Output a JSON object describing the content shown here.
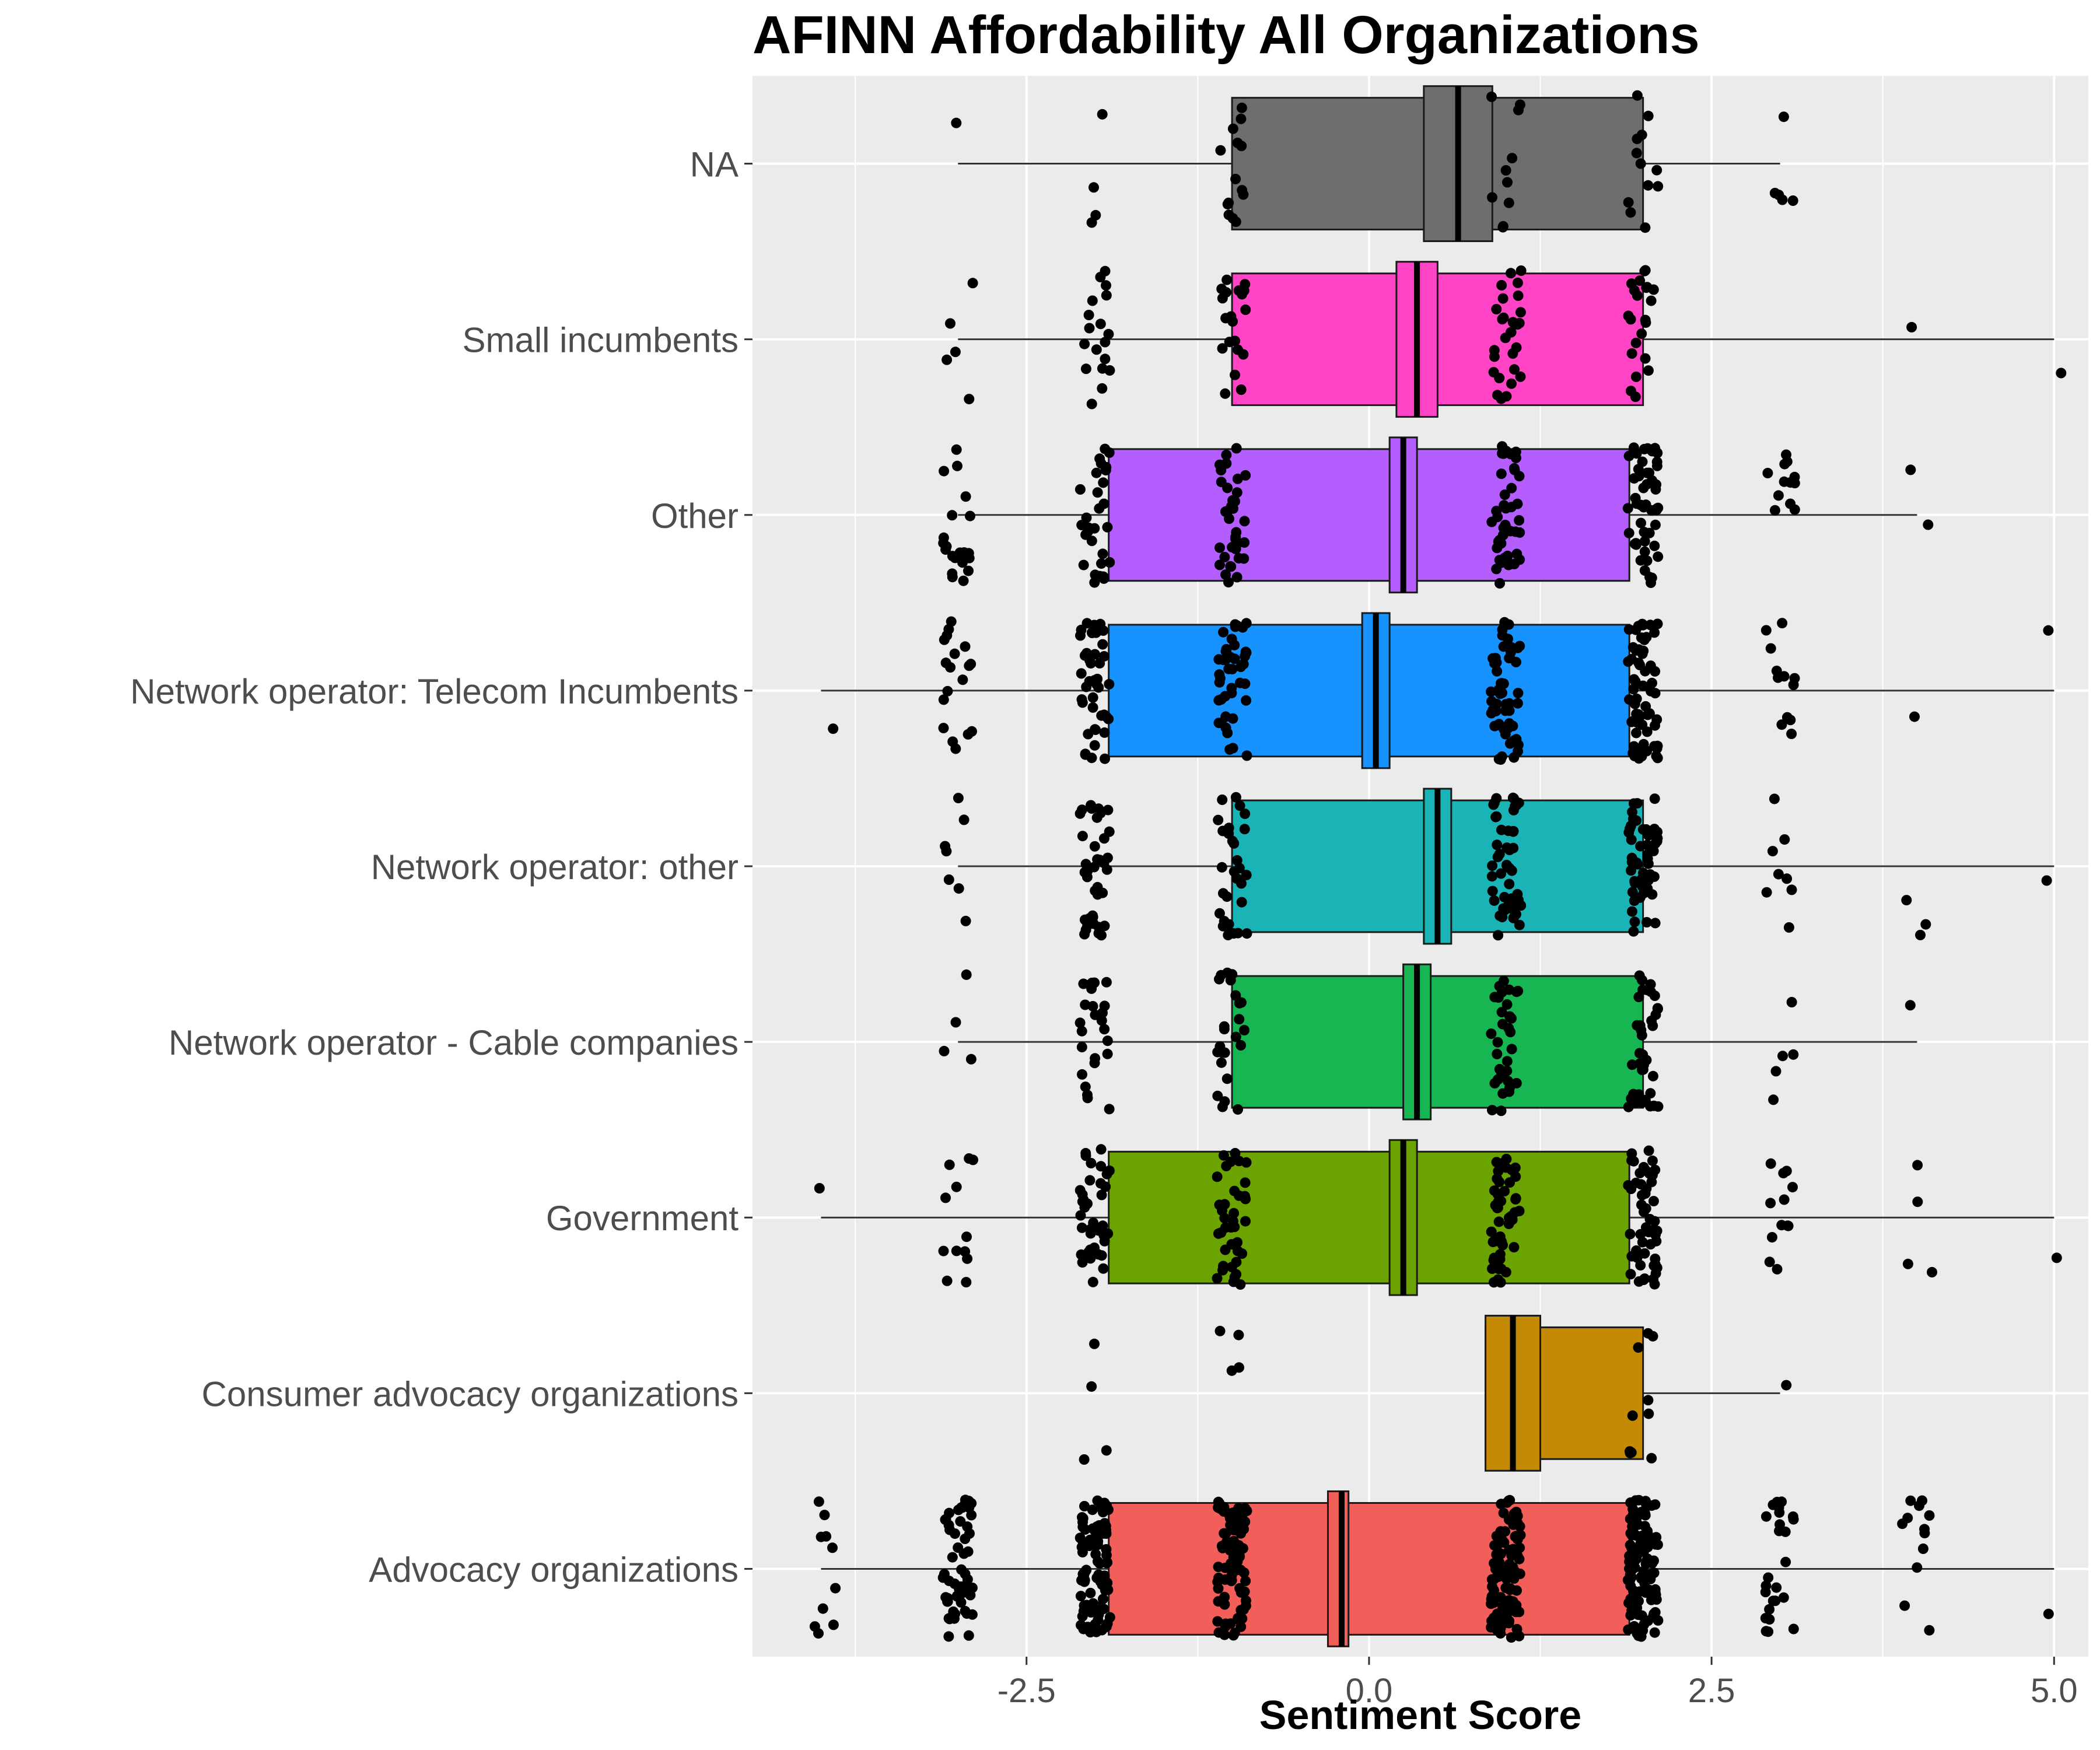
{
  "title": "AFINN Affordability All Organizations",
  "chart_data": {
    "type": "boxplot",
    "title": "AFINN Affordability All Organizations",
    "xlabel": "Sentiment Score",
    "ylabel": "",
    "orientation": "horizontal",
    "notched": true,
    "jittered_points": true,
    "xlim": [
      -4.5,
      5.25
    ],
    "x_ticks": [
      -2.5,
      0.0,
      2.5,
      5.0
    ],
    "x_tick_labels": [
      "-2.5",
      "0.0",
      "2.5",
      "5.0"
    ],
    "grid": true,
    "legend": "none",
    "categories": [
      "NA",
      "Small incumbents",
      "Other",
      "Network operator: Telecom Incumbents",
      "Network operator: other",
      "Network operator - Cable companies",
      "Government",
      "Consumer advocacy organizations",
      "Advocacy organizations"
    ],
    "boxes": [
      {
        "category": "NA",
        "color": "#6e6e6e",
        "min": -3,
        "q1": -1,
        "median": 0.65,
        "q3": 2,
        "max": 3,
        "notch_low": 0.4,
        "notch_high": 0.9,
        "points": {
          "-3": 1,
          "-2": 4,
          "-1": 14,
          "1": 10,
          "2": 12,
          "3": 5
        }
      },
      {
        "category": "Small incumbents",
        "color": "#ff45c5",
        "min": -3,
        "q1": -1,
        "median": 0.35,
        "q3": 2,
        "max": 5,
        "notch_low": 0.2,
        "notch_high": 0.5,
        "points": {
          "-3": 5,
          "-2": 18,
          "-1": 20,
          "1": 28,
          "2": 22,
          "4": 1,
          "5": 1
        }
      },
      {
        "category": "Other",
        "color": "#b55eff",
        "min": -3,
        "q1": -1.9,
        "median": 0.25,
        "q3": 1.9,
        "max": 4,
        "notch_low": 0.15,
        "notch_high": 0.35,
        "points": {
          "-3": 22,
          "-2": 30,
          "-1": 36,
          "1": 45,
          "2": 50,
          "3": 12,
          "4": 2
        }
      },
      {
        "category": "Network operator: Telecom Incumbents",
        "color": "#1693ff",
        "min": -4,
        "q1": -1.9,
        "median": 0.05,
        "q3": 1.9,
        "max": 5,
        "notch_low": -0.05,
        "notch_high": 0.15,
        "points": {
          "-4": 1,
          "-3": 18,
          "-2": 45,
          "-1": 42,
          "1": 55,
          "2": 62,
          "3": 12,
          "4": 1,
          "5": 1
        }
      },
      {
        "category": "Network operator: other",
        "color": "#1ab4b7",
        "min": -3,
        "q1": -1,
        "median": 0.5,
        "q3": 2,
        "max": 5,
        "notch_low": 0.4,
        "notch_high": 0.6,
        "points": {
          "-3": 7,
          "-2": 38,
          "-1": 30,
          "1": 48,
          "2": 52,
          "3": 8,
          "4": 3,
          "5": 1
        }
      },
      {
        "category": "Network operator - Cable companies",
        "color": "#18b553",
        "min": -3,
        "q1": -1,
        "median": 0.35,
        "q3": 2,
        "max": 4,
        "notch_low": 0.25,
        "notch_high": 0.45,
        "points": {
          "-3": 4,
          "-2": 24,
          "-1": 24,
          "1": 32,
          "2": 38,
          "3": 5,
          "4": 1
        }
      },
      {
        "category": "Government",
        "color": "#6ba400",
        "min": -4,
        "q1": -1.9,
        "median": 0.25,
        "q3": 1.9,
        "max": 5,
        "notch_low": 0.15,
        "notch_high": 0.35,
        "points": {
          "-4": 1,
          "-3": 12,
          "-2": 40,
          "-1": 38,
          "1": 48,
          "2": 52,
          "3": 12,
          "4": 4,
          "5": 1
        }
      },
      {
        "category": "Consumer advocacy organizations",
        "color": "#c58a04",
        "min": 0.85,
        "q1": 0.85,
        "median": 1.05,
        "q3": 2,
        "max": 3,
        "notch_low": 0.85,
        "notch_high": 1.25,
        "points": {
          "-2": 4,
          "-1": 4,
          "2": 10,
          "3": 1
        }
      },
      {
        "category": "Advocacy organizations",
        "color": "#f25e5a",
        "min": -4,
        "q1": -1.9,
        "median": -0.2,
        "q3": 1.9,
        "max": 5,
        "notch_low": -0.3,
        "notch_high": -0.15,
        "points": {
          "-4": 10,
          "-3": 55,
          "-2": 90,
          "-1": 75,
          "1": 95,
          "2": 110,
          "3": 25,
          "4": 12,
          "5": 1
        }
      }
    ]
  }
}
